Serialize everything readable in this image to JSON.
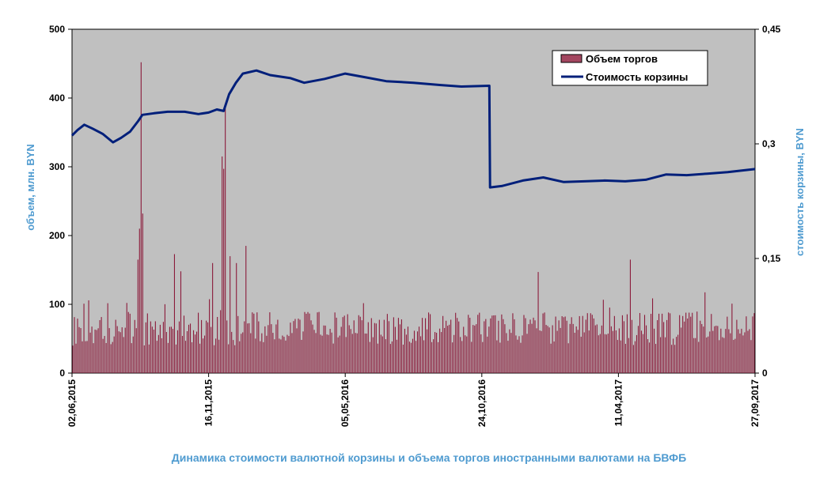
{
  "chart_data": {
    "type": "bar+line",
    "title": "Динамика стоимости валютной корзины и объема торгов иностранными валютами на БВФБ",
    "y_left_label": "объем, млн. BYN",
    "y_right_label": "стоимость корзины, BYN",
    "y_left_range": [
      0,
      500
    ],
    "y_left_ticks": [
      "0",
      "100",
      "200",
      "300",
      "400",
      "500"
    ],
    "y_right_range": [
      0,
      0.45
    ],
    "y_right_ticks": [
      "0",
      "0,15",
      "0,3",
      "0,45"
    ],
    "x_tick_labels": [
      "02,06,2015",
      "16,11,2015",
      "05,05,2016",
      "24,10,2016",
      "11,04,2017",
      "27,09,2017"
    ],
    "x_tick_positions": [
      0,
      0.2,
      0.4,
      0.6,
      0.8,
      1.0
    ],
    "legend": {
      "position": "top-right",
      "entries": [
        "Объем торгов",
        "Стоимость корзины"
      ]
    },
    "series": [
      {
        "name": "Объем торгов",
        "kind": "bar",
        "color": "#8b1a3a",
        "spikes": [
          {
            "x": 0.1,
            "value": 452
          },
          {
            "x": 0.098,
            "value": 210
          },
          {
            "x": 0.102,
            "value": 232
          },
          {
            "x": 0.096,
            "value": 165
          },
          {
            "x": 0.15,
            "value": 173
          },
          {
            "x": 0.158,
            "value": 148
          },
          {
            "x": 0.205,
            "value": 160
          },
          {
            "x": 0.218,
            "value": 315
          },
          {
            "x": 0.221,
            "value": 297
          },
          {
            "x": 0.224,
            "value": 385
          },
          {
            "x": 0.23,
            "value": 170
          },
          {
            "x": 0.24,
            "value": 160
          },
          {
            "x": 0.254,
            "value": 185
          },
          {
            "x": 0.682,
            "value": 147
          },
          {
            "x": 0.818,
            "value": 165
          }
        ],
        "base_band": [
          40,
          110
        ]
      },
      {
        "name": "Стоимость корзины",
        "kind": "line",
        "color": "#001f7a",
        "points": [
          [
            0.0,
            0.311
          ],
          [
            0.008,
            0.318
          ],
          [
            0.018,
            0.325
          ],
          [
            0.03,
            0.32
          ],
          [
            0.045,
            0.313
          ],
          [
            0.06,
            0.302
          ],
          [
            0.072,
            0.308
          ],
          [
            0.085,
            0.316
          ],
          [
            0.097,
            0.33
          ],
          [
            0.103,
            0.338
          ],
          [
            0.12,
            0.34
          ],
          [
            0.14,
            0.342
          ],
          [
            0.165,
            0.342
          ],
          [
            0.185,
            0.339
          ],
          [
            0.2,
            0.341
          ],
          [
            0.212,
            0.345
          ],
          [
            0.222,
            0.343
          ],
          [
            0.23,
            0.365
          ],
          [
            0.24,
            0.38
          ],
          [
            0.25,
            0.392
          ],
          [
            0.27,
            0.396
          ],
          [
            0.29,
            0.39
          ],
          [
            0.32,
            0.386
          ],
          [
            0.34,
            0.38
          ],
          [
            0.37,
            0.385
          ],
          [
            0.4,
            0.392
          ],
          [
            0.43,
            0.387
          ],
          [
            0.46,
            0.382
          ],
          [
            0.5,
            0.38
          ],
          [
            0.54,
            0.377
          ],
          [
            0.57,
            0.375
          ],
          [
            0.611,
            0.376
          ],
          [
            0.612,
            0.243
          ],
          [
            0.63,
            0.245
          ],
          [
            0.66,
            0.252
          ],
          [
            0.69,
            0.256
          ],
          [
            0.72,
            0.25
          ],
          [
            0.75,
            0.251
          ],
          [
            0.78,
            0.252
          ],
          [
            0.81,
            0.251
          ],
          [
            0.84,
            0.253
          ],
          [
            0.87,
            0.26
          ],
          [
            0.9,
            0.259
          ],
          [
            0.93,
            0.261
          ],
          [
            0.96,
            0.263
          ],
          [
            1.0,
            0.267
          ]
        ]
      }
    ]
  }
}
